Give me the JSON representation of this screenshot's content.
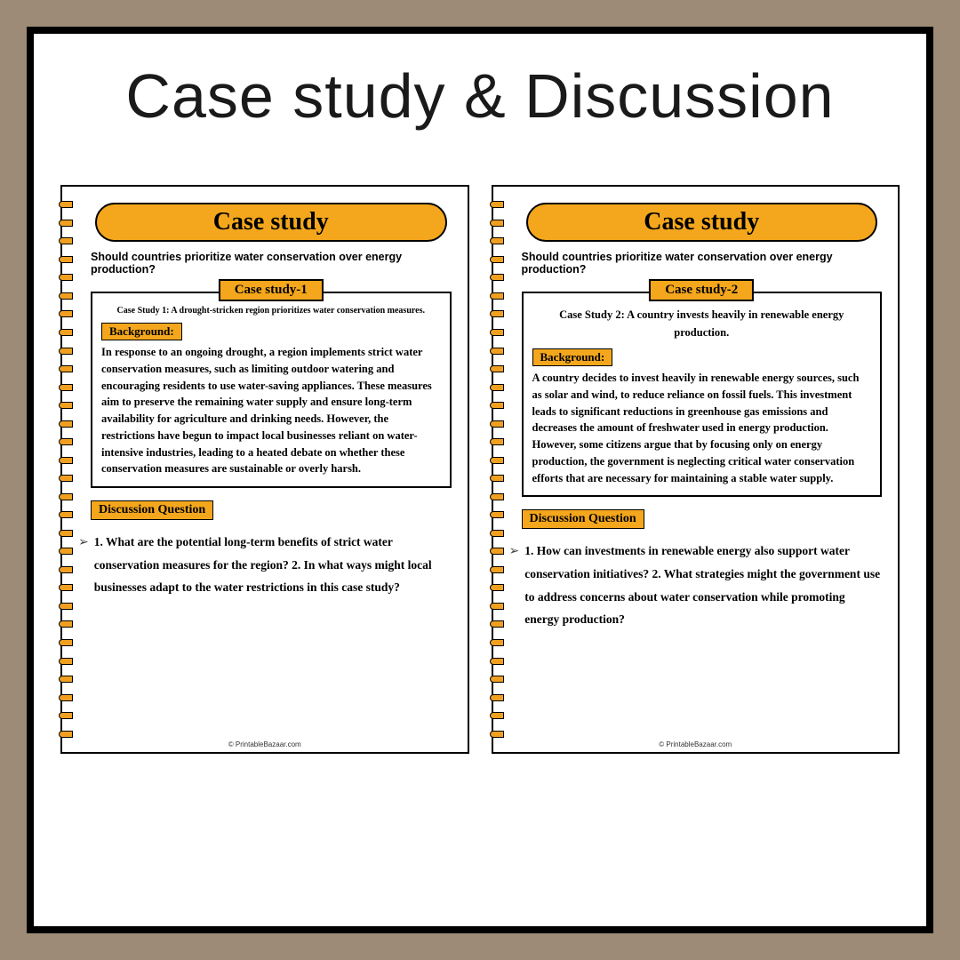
{
  "main_title": "Case study & Discussion",
  "pages": [
    {
      "pill_title": "Case study",
      "question": "Should countries prioritize water conservation over energy production?",
      "case_tab": "Case study-1",
      "case_intro": "Case Study 1: A drought-stricken region prioritizes water conservation measures.",
      "bg_label": "Background:",
      "bg_text": "In response to an ongoing drought, a region implements strict water conservation measures, such as limiting outdoor watering and encouraging residents to use water-saving appliances. These measures aim to preserve the remaining water supply and ensure long-term availability for agriculture and drinking needs. However, the restrictions have begun to impact local businesses reliant on water-intensive industries, leading to a heated debate on whether these conservation measures are sustainable or overly harsh.",
      "dq_label": "Discussion Question",
      "dq_text": "1. What are the potential long-term benefits of strict water conservation measures for the region? 2. In what ways might local businesses adapt to the water restrictions in this case study?",
      "footer": "© PrintableBazaar.com"
    },
    {
      "pill_title": "Case study",
      "question": "Should countries prioritize water conservation over energy production?",
      "case_tab": "Case study-2",
      "case_intro": "Case Study 2: A country invests heavily in renewable energy production.",
      "bg_label": "Background:",
      "bg_text": "A country decides to invest heavily in renewable energy sources, such as solar and wind, to reduce reliance on fossil fuels. This investment leads to significant reductions in greenhouse gas emissions and decreases the amount of freshwater used in energy production. However, some citizens argue that by focusing only on energy production, the government is neglecting critical water conservation efforts that are necessary for maintaining a stable water supply.",
      "dq_label": "Discussion Question",
      "dq_text": "1. How can investments in renewable energy also support water conservation initiatives? 2. What strategies might the government use to address concerns about water conservation while promoting energy production?",
      "footer": "© PrintableBazaar.com"
    }
  ],
  "colors": {
    "outer_bg": "#9d8b77",
    "white": "#ffffff",
    "accent": "#f4a71c",
    "black": "#000000"
  }
}
